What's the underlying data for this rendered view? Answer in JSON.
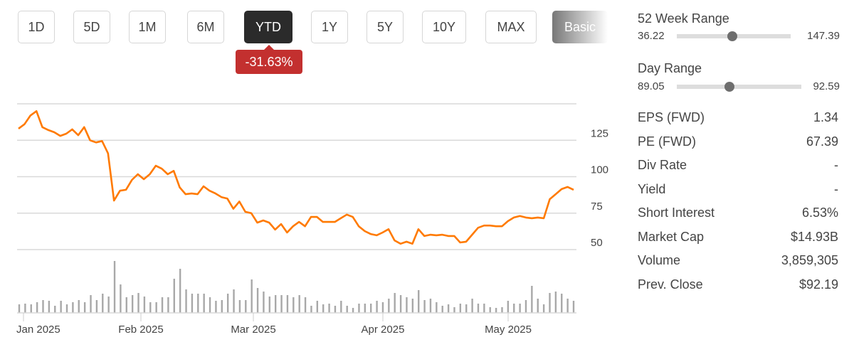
{
  "range_buttons": [
    {
      "label": "1D",
      "active": false
    },
    {
      "label": "5D",
      "active": false
    },
    {
      "label": "1M",
      "active": false
    },
    {
      "label": "6M",
      "active": false
    },
    {
      "label": "YTD",
      "active": true
    },
    {
      "label": "1Y",
      "active": false
    },
    {
      "label": "5Y",
      "active": false
    },
    {
      "label": "10Y",
      "active": false
    },
    {
      "label": "MAX",
      "active": false
    },
    {
      "label": "Basic",
      "active": false
    }
  ],
  "change_badge": "-31.63%",
  "colors": {
    "line": "#ff7a00",
    "volume": "#a8a8a8",
    "badge": "#c3302f",
    "active": "#2b2b2b"
  },
  "chart_data": {
    "type": "line",
    "y_ticks": [
      "125",
      "100",
      "75",
      "50"
    ],
    "y_tick_values": [
      125,
      100,
      75,
      50
    ],
    "ylim": [
      50,
      150
    ],
    "x_labels": [
      "Jan 2025",
      "Feb 2025",
      "Mar 2025",
      "Apr 2025",
      "May 2025"
    ],
    "price": [
      133,
      136,
      142,
      145,
      134,
      132,
      130.5,
      128,
      129.5,
      132.5,
      128.5,
      134,
      125,
      123.5,
      124.5,
      116,
      83.6,
      90.4,
      91,
      97.8,
      101.7,
      98.3,
      101.7,
      107.5,
      105.5,
      101.7,
      104,
      92.7,
      88,
      88.5,
      88,
      93.4,
      90.4,
      88.5,
      86,
      85,
      78,
      83,
      75.9,
      75,
      68.5,
      70,
      68.5,
      63.7,
      67.5,
      61.7,
      66,
      69,
      66,
      72.4,
      72.4,
      69,
      69,
      69,
      71.5,
      74,
      72.4,
      66,
      62.7,
      60.7,
      59.8,
      61.7,
      64,
      56.3,
      54,
      55.4,
      54,
      64,
      59.3,
      60.2,
      59.8,
      60.2,
      59.3,
      59.3,
      54.9,
      55.4,
      60.2,
      65,
      66.5,
      66.5,
      66,
      66,
      69.5,
      72,
      73,
      72,
      71.5,
      72,
      71.5,
      84.6,
      88,
      91.5,
      93,
      91
    ],
    "volume_relative": [
      12,
      13,
      12,
      15,
      18,
      17,
      10,
      17,
      12,
      15,
      18,
      15,
      25,
      18,
      27,
      23,
      73,
      40,
      22,
      25,
      28,
      23,
      15,
      15,
      22,
      22,
      48,
      62,
      33,
      27,
      27,
      27,
      22,
      17,
      18,
      27,
      33,
      18,
      18,
      47,
      35,
      30,
      23,
      25,
      25,
      25,
      22,
      25,
      22,
      10,
      17,
      12,
      13,
      10,
      17,
      10,
      7,
      13,
      13,
      13,
      17,
      15,
      20,
      28,
      25,
      22,
      20,
      32,
      18,
      20,
      15,
      10,
      12,
      8,
      13,
      12,
      20,
      13,
      13,
      8,
      7,
      8,
      17,
      13,
      13,
      18,
      38,
      20,
      12,
      28,
      30,
      27,
      20,
      17
    ]
  },
  "stats": {
    "week52": {
      "label": "52 Week Range",
      "min": "36.22",
      "max": "147.39",
      "position": 0.49
    },
    "day": {
      "label": "Day Range",
      "min": "89.05",
      "max": "92.59",
      "position": 0.42
    },
    "rows": [
      {
        "label": "EPS (FWD)",
        "value": "1.34"
      },
      {
        "label": "PE (FWD)",
        "value": "67.39"
      },
      {
        "label": "Div Rate",
        "value": "-"
      },
      {
        "label": "Yield",
        "value": "-"
      },
      {
        "label": "Short Interest",
        "value": "6.53%"
      },
      {
        "label": "Market Cap",
        "value": "$14.93B"
      },
      {
        "label": "Volume",
        "value": "3,859,305"
      },
      {
        "label": "Prev. Close",
        "value": "$92.19"
      }
    ]
  }
}
